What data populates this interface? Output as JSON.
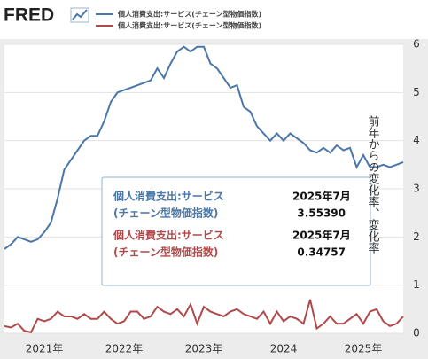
{
  "header": {
    "logo": "FRED"
  },
  "chart_data": {
    "type": "line",
    "y_axis_label": "前年からの変化率、変化率",
    "categories": [
      null,
      null,
      null,
      null,
      null,
      null,
      "2021年",
      null,
      null,
      null,
      null,
      null,
      null,
      null,
      null,
      null,
      null,
      null,
      "2022年",
      null,
      null,
      null,
      null,
      null,
      null,
      null,
      null,
      null,
      null,
      null,
      "2023年",
      null,
      null,
      null,
      null,
      null,
      null,
      null,
      null,
      null,
      null,
      null,
      "2024",
      null,
      null,
      null,
      null,
      null,
      null,
      null,
      null,
      null,
      null,
      null,
      "2025年",
      null,
      null,
      null,
      null,
      null,
      null
    ],
    "series": [
      {
        "name": "個人消費支出:サービス(チェーン型物価指数)",
        "color": "#4a76a8",
        "values": [
          1.75,
          1.85,
          2.0,
          1.95,
          1.9,
          1.95,
          2.1,
          2.3,
          2.8,
          3.4,
          3.6,
          3.8,
          4.0,
          4.1,
          4.1,
          4.4,
          4.8,
          5.0,
          5.05,
          5.1,
          5.15,
          5.2,
          5.25,
          5.5,
          5.3,
          5.6,
          5.85,
          5.95,
          5.85,
          5.95,
          5.95,
          5.6,
          5.5,
          5.3,
          5.1,
          5.15,
          4.7,
          4.6,
          4.3,
          4.15,
          4.0,
          4.15,
          4.0,
          4.15,
          4.05,
          3.95,
          3.8,
          3.75,
          3.85,
          3.75,
          3.9,
          3.8,
          3.85,
          3.45,
          3.7,
          3.45,
          3.45,
          3.5,
          3.45,
          3.5,
          3.5539
        ]
      },
      {
        "name": "個人消費支出:サービス(チェーン型物価指数)",
        "color": "#b04a4a",
        "values": [
          0.15,
          0.12,
          0.2,
          0.05,
          0.02,
          0.3,
          0.25,
          0.3,
          0.45,
          0.35,
          0.35,
          0.3,
          0.4,
          0.3,
          0.3,
          0.45,
          0.3,
          0.2,
          0.25,
          0.45,
          0.45,
          0.3,
          0.35,
          0.55,
          0.45,
          0.4,
          0.5,
          0.35,
          0.6,
          0.2,
          0.55,
          0.45,
          0.4,
          0.35,
          0.45,
          0.5,
          0.4,
          0.35,
          0.3,
          0.45,
          0.2,
          0.45,
          0.25,
          0.35,
          0.3,
          0.2,
          0.7,
          0.1,
          0.2,
          0.35,
          0.2,
          0.2,
          0.3,
          0.4,
          0.2,
          0.45,
          0.5,
          0.25,
          0.15,
          0.2,
          0.34757
        ]
      }
    ],
    "ylim": [
      0,
      6
    ],
    "yticks": [
      0,
      1,
      2,
      3,
      4,
      5,
      6
    ],
    "grid": true,
    "tooltip": {
      "entries": [
        {
          "lines": [
            "個人消費支出:サービス",
            "(チェーン型物価指数)"
          ],
          "date": "2025年7月",
          "value_label": "3.55390"
        },
        {
          "lines": [
            "個人消費支出:サービス",
            "(チェーン型物価指数)"
          ],
          "date": "2025年7月",
          "value_label": "0.34757"
        }
      ]
    }
  }
}
